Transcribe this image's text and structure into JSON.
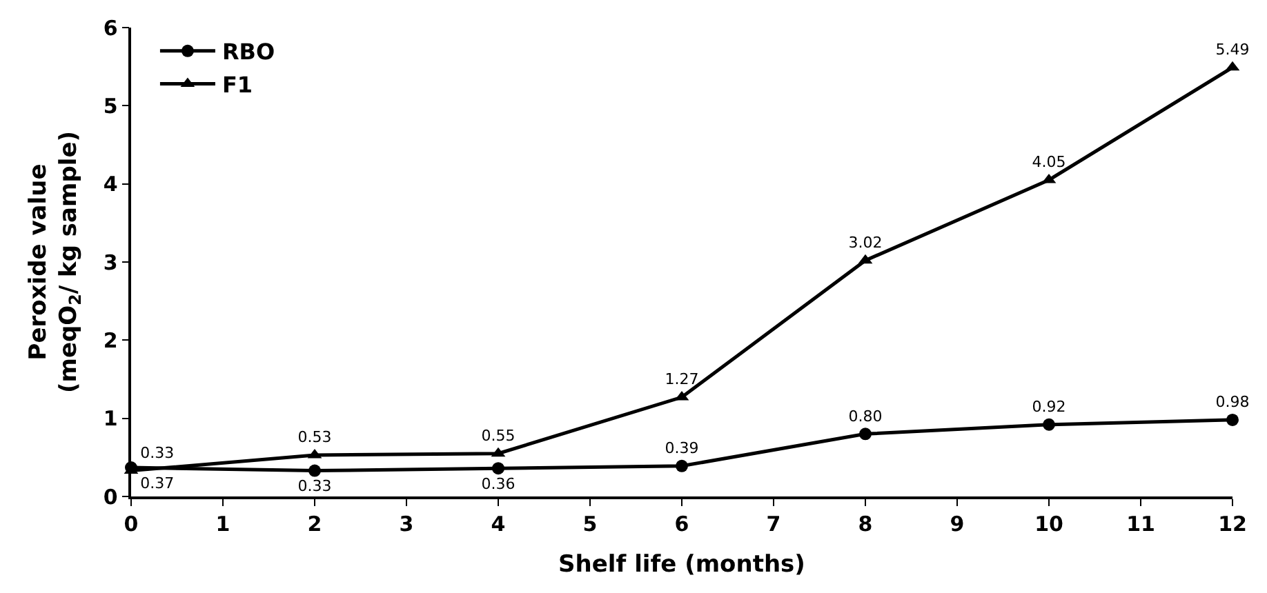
{
  "chart_data": {
    "type": "line",
    "xlabel": "Shelf life (months)",
    "ylabel": "Peroxide value\n(meqO$_{2}$/ kg sample)",
    "x": [
      0,
      2,
      4,
      6,
      8,
      10,
      12
    ],
    "series": [
      {
        "name": "RBO",
        "color": "#000000",
        "marker": "circle",
        "values": [
          0.37,
          0.33,
          0.36,
          0.39,
          0.8,
          0.92,
          0.98
        ],
        "value_labels": [
          "0.37",
          "0.33",
          "0.36",
          "0.39",
          "0.80",
          "0.92",
          "0.98"
        ]
      },
      {
        "name": "F1",
        "color": "#000000",
        "marker": "triangle",
        "values": [
          0.33,
          0.53,
          0.55,
          1.27,
          3.02,
          4.05,
          5.49
        ],
        "value_labels": [
          "0.33",
          "0.53",
          "0.55",
          "1.27",
          "3.02",
          "4.05",
          "5.49"
        ]
      }
    ],
    "xlim": [
      0,
      12
    ],
    "xticks": [
      0,
      1,
      2,
      3,
      4,
      5,
      6,
      7,
      8,
      9,
      10,
      11,
      12
    ],
    "ylim": [
      0,
      6
    ],
    "yticks": [
      0,
      1,
      2,
      3,
      4,
      5,
      6
    ],
    "legend": "top left",
    "line_style": "solid"
  }
}
